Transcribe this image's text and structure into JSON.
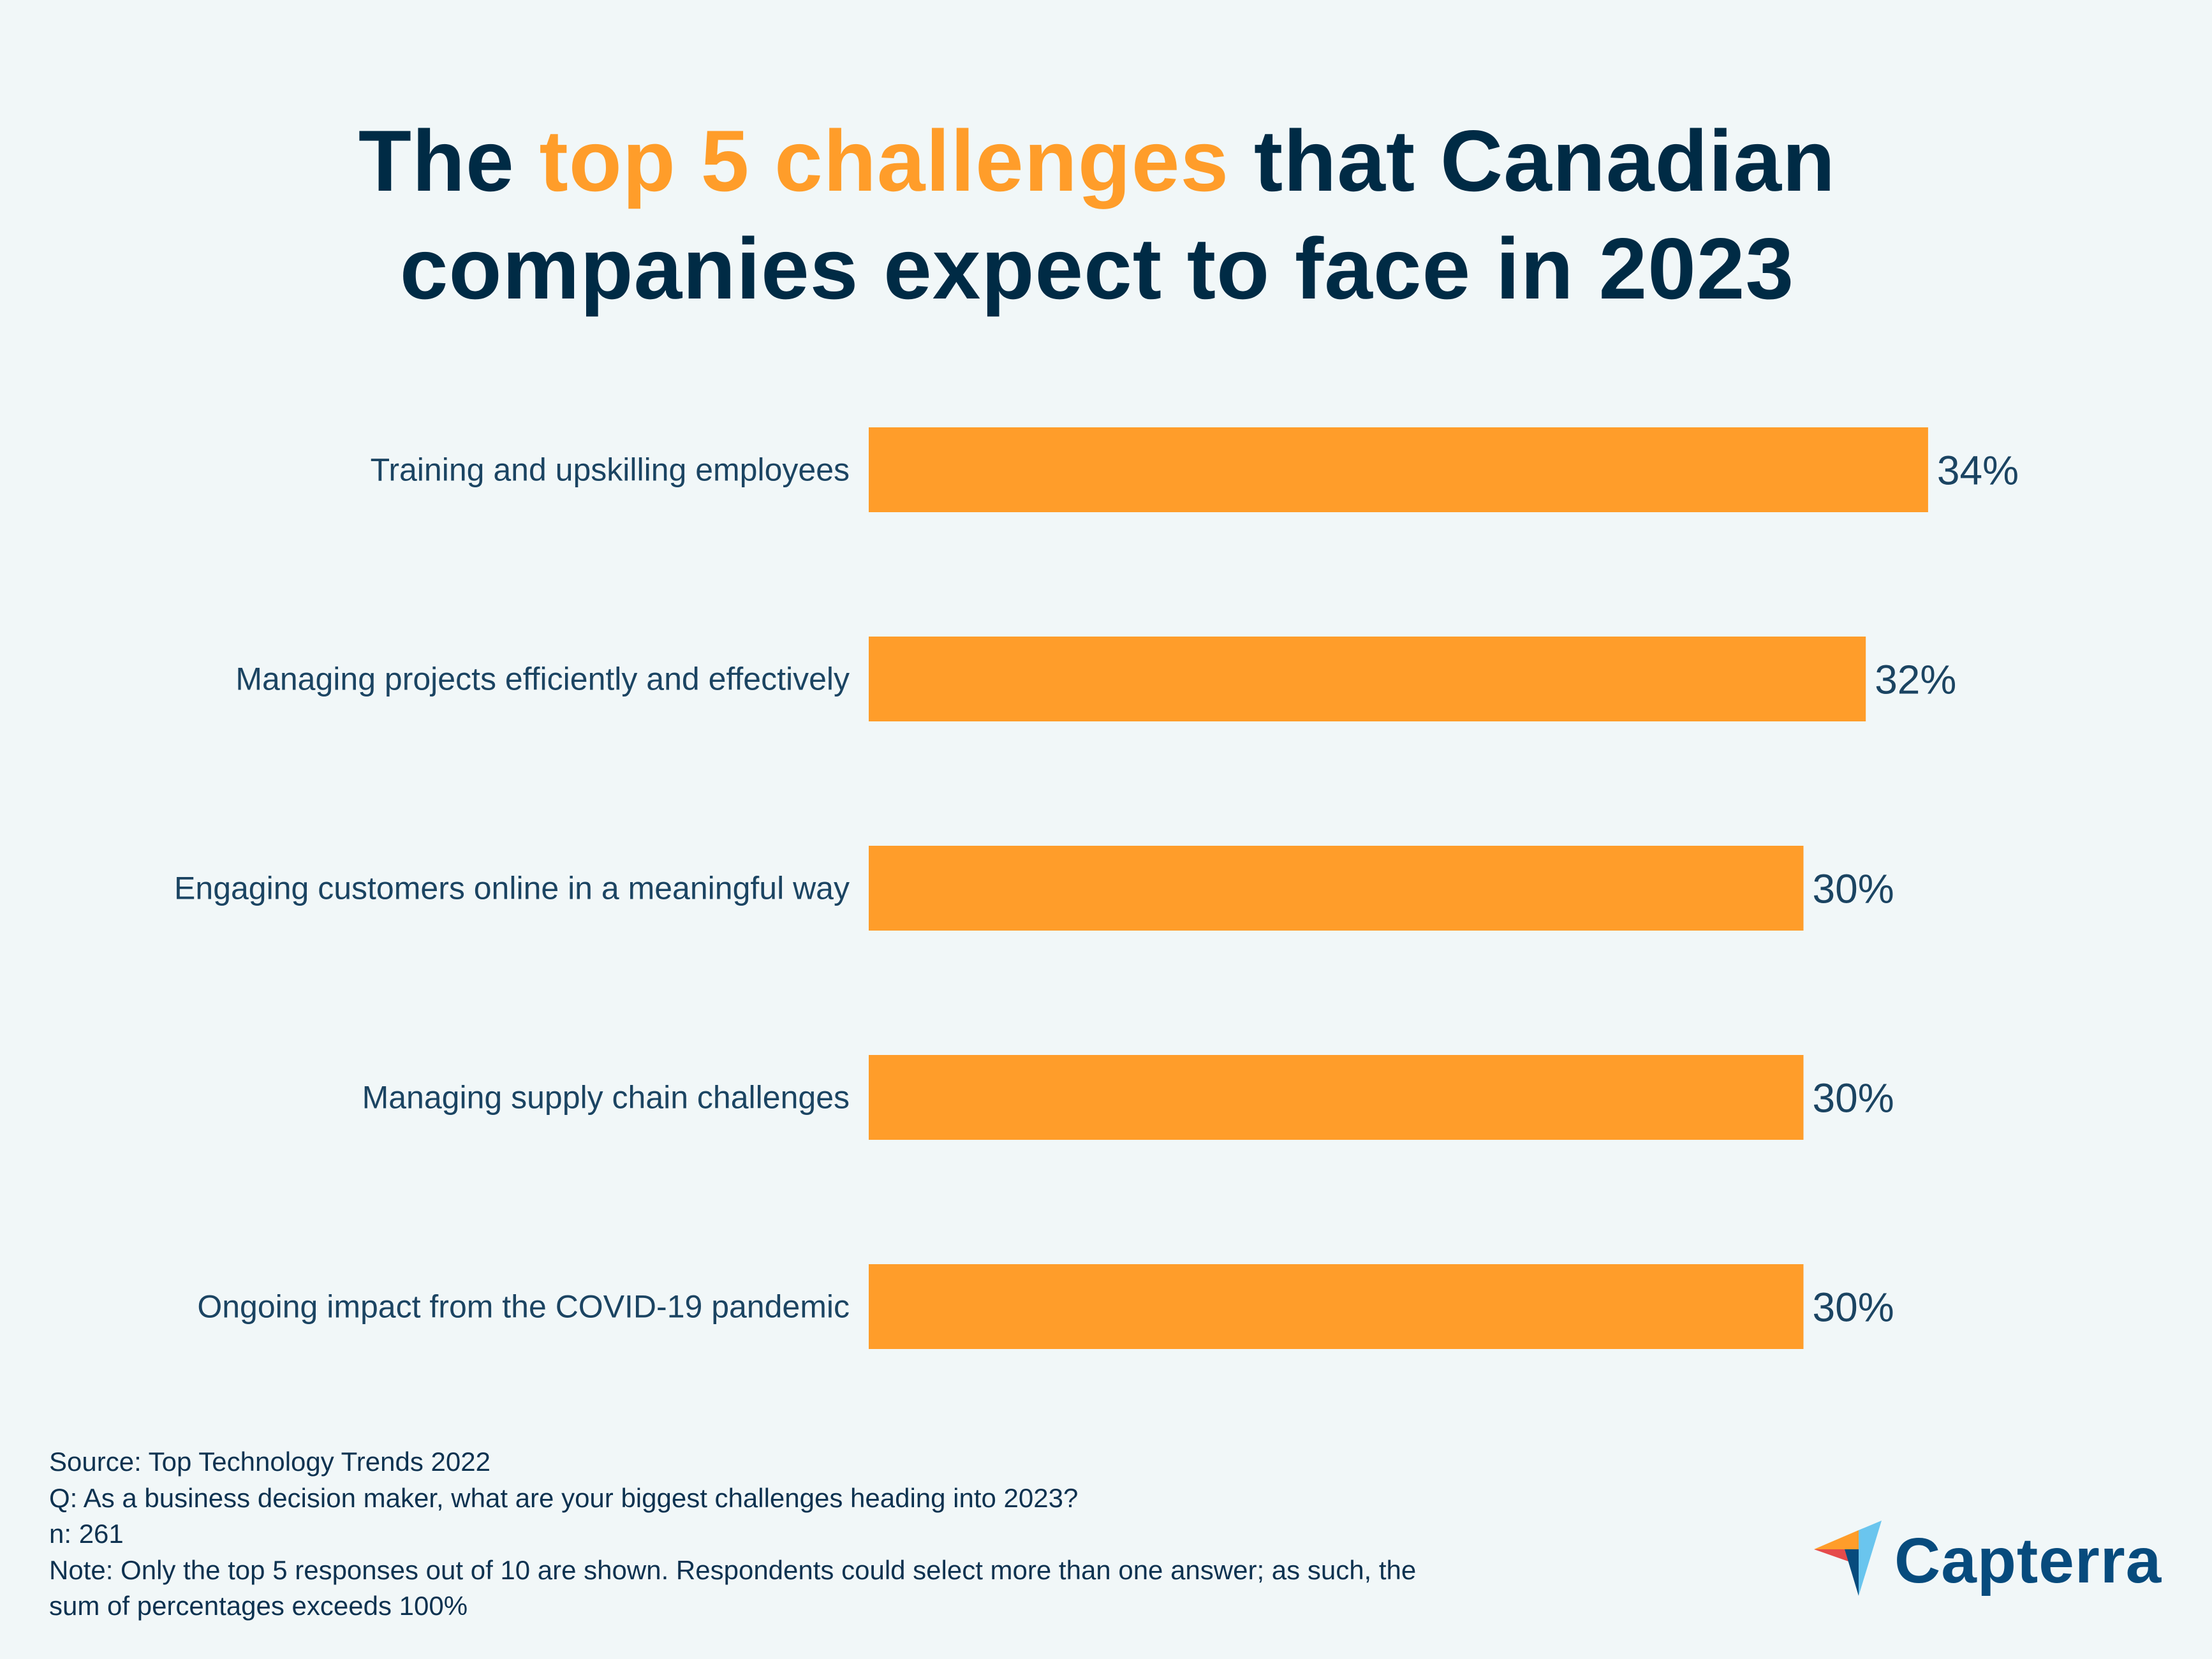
{
  "header": {
    "title_line1_pre": "The ",
    "title_line1_accent": "top 5 challenges",
    "title_line1_post": " that Canadian",
    "title_line2": "companies expect to face in 2023"
  },
  "colors": {
    "background": "#f1f7f8",
    "title": "#002b45",
    "accent": "#ff9d2a",
    "bar": "#ff9d2a",
    "text": "#1b4462",
    "logo_text": "#074b7d",
    "logo_orange": "#ff9d2a",
    "logo_red": "#e54b4b",
    "logo_navy": "#074b7d",
    "logo_lightblue": "#6ac5ee"
  },
  "chart_data": {
    "type": "bar",
    "orientation": "horizontal",
    "title": "The top 5 challenges that Canadian companies expect to face in 2023",
    "categories": [
      "Training and upskilling employees",
      "Managing projects efficiently and effectively",
      "Engaging customers online in a meaningful way",
      "Managing supply chain challenges",
      "Ongoing impact from the COVID-19 pandemic"
    ],
    "values": [
      34,
      32,
      30,
      30,
      30
    ],
    "value_labels": [
      "34%",
      "32%",
      "30%",
      "30%",
      "30%"
    ],
    "unit": "%",
    "xlabel": "",
    "ylabel": "",
    "xlim": [
      0,
      34
    ],
    "grid": false,
    "legend": "none",
    "data_labels": "end-of-bar"
  },
  "footer": {
    "lines": [
      "Source: Top Technology Trends 2022",
      "Q: As a business decision maker, what are your biggest challenges heading into 2023?",
      "n: 261",
      "Note: Only the top 5 responses out of 10 are shown. Respondents could select more than one answer; as such, the",
      "sum of percentages exceeds 100%"
    ]
  },
  "brand": {
    "name": "Capterra",
    "icon": "capterra-logo-icon"
  }
}
